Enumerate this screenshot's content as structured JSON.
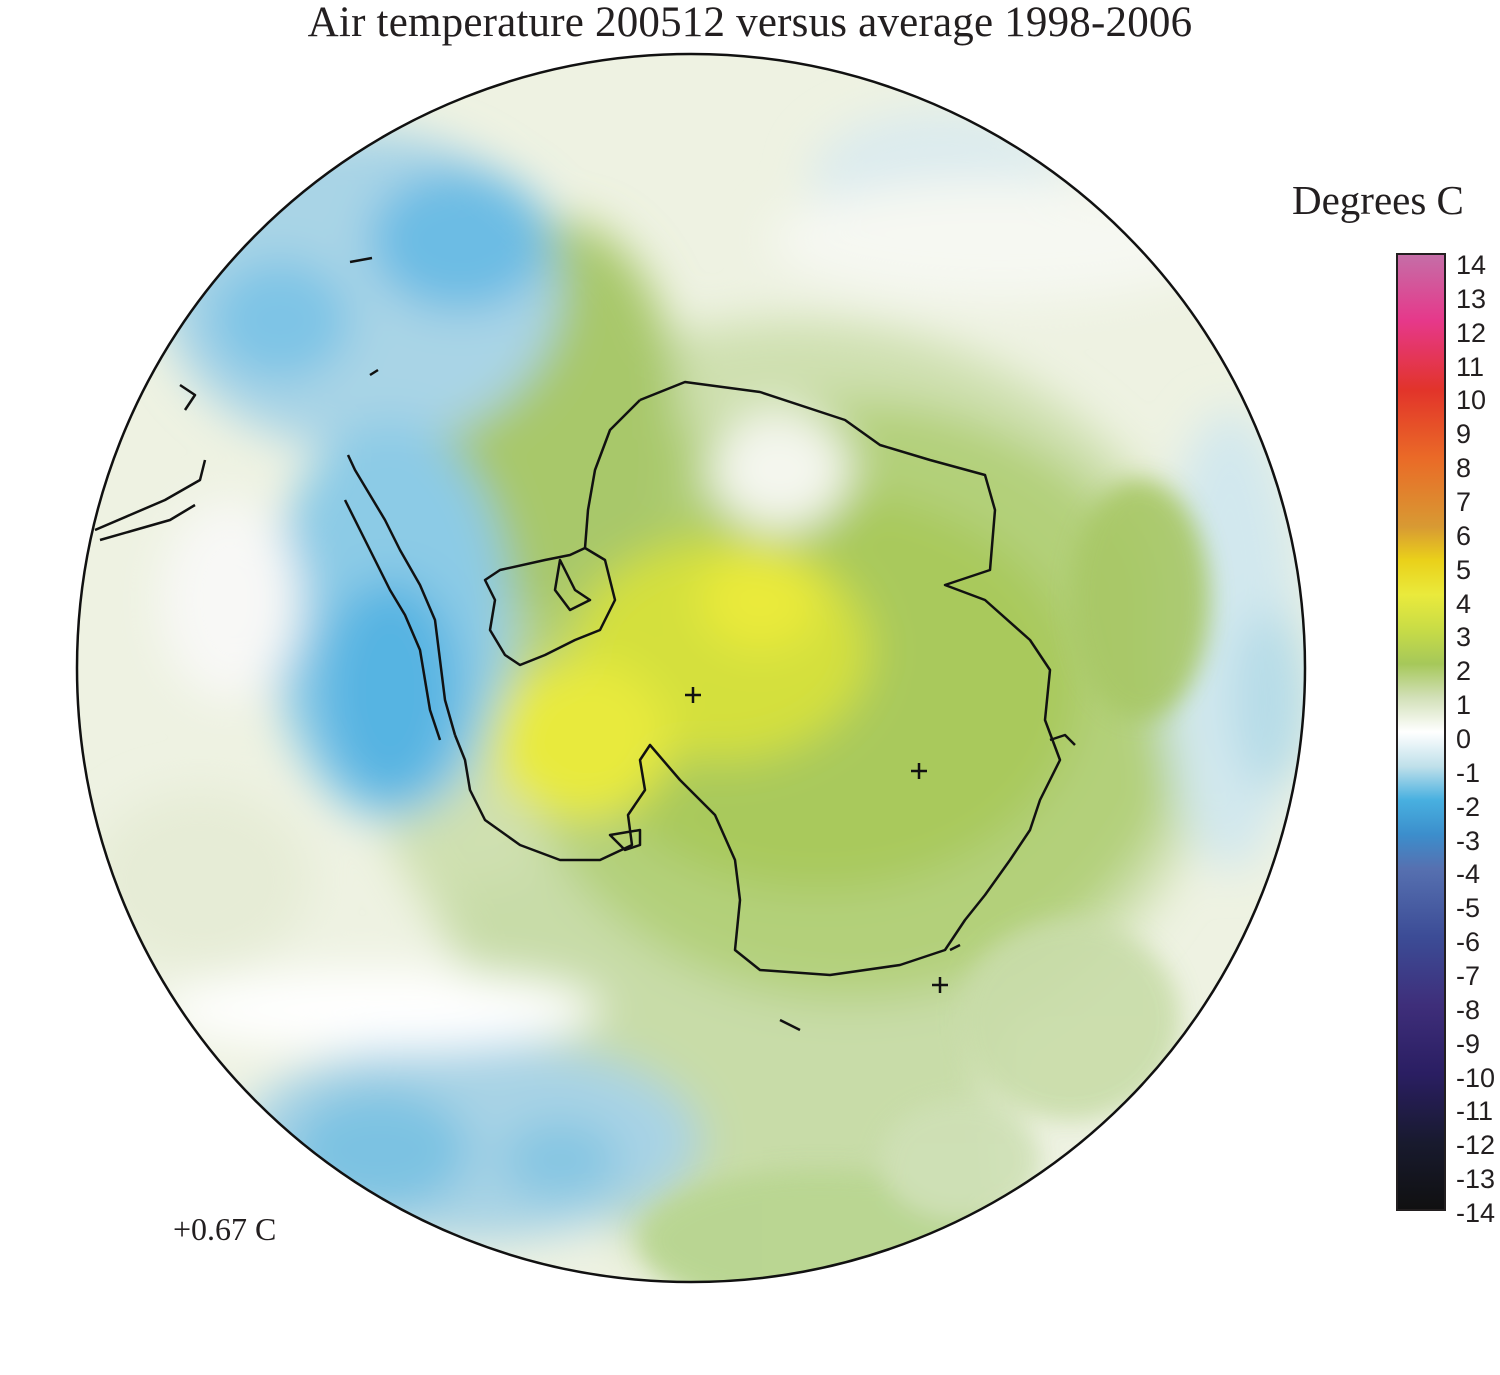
{
  "title": "Air temperature 200512 versus average 1998-2006",
  "legend": {
    "unit_label": "Degrees C",
    "ticks": [
      "14",
      "13",
      "12",
      "11",
      "10",
      "9",
      "8",
      "7",
      "6",
      "5",
      "4",
      "3",
      "2",
      "1",
      "0",
      "-1",
      "-2",
      "-3",
      "-4",
      "-5",
      "-6",
      "-7",
      "-8",
      "-9",
      "-10",
      "-11",
      "-12",
      "-13",
      "-14"
    ],
    "range": [
      -14,
      14
    ],
    "colors": {
      "14": "#c46fa8",
      "12": "#e6388a",
      "10": "#e2342a",
      "8": "#ea6a27",
      "6": "#d89a33",
      "5": "#ead11a",
      "4": "#eaea3c",
      "3": "#c8dc46",
      "2": "#a6c85a",
      "1": "#d2e0b8",
      "0": "#ffffff",
      "-1": "#bfe0ea",
      "-2": "#48b0e0",
      "-3": "#3c8ecc",
      "-4": "#5670b0",
      "-6": "#3c4c96",
      "-8": "#3e2e7a",
      "-10": "#2a1e62",
      "-12": "#181a2e",
      "-14": "#101010"
    }
  },
  "mean_anomaly": "+0.67 C",
  "map": {
    "projection": "south polar stereographic",
    "region": "Antarctica and Southern Ocean",
    "markers": [
      "plus-marker",
      "plus-marker",
      "plus-marker"
    ]
  }
}
